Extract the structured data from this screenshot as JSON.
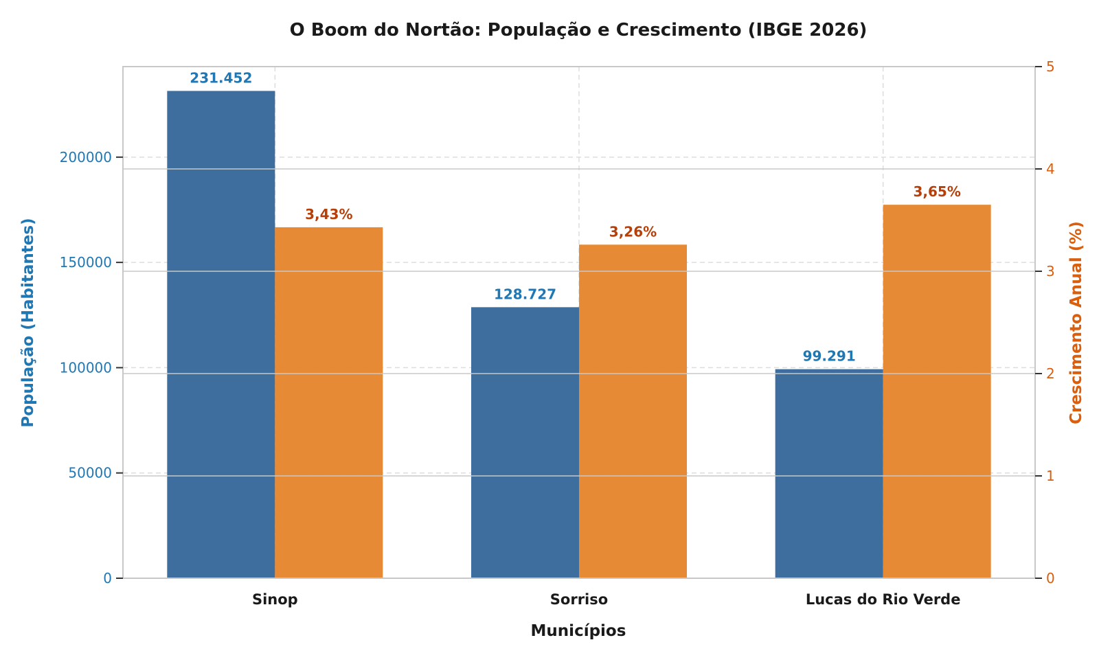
{
  "chart_data": {
    "type": "bar",
    "title": "O Boom do Nortão: População e Crescimento (IBGE 2026)",
    "xlabel": "Municípios",
    "categories": [
      "Sinop",
      "Sorriso",
      "Lucas do Rio Verde"
    ],
    "left_axis": {
      "label": "População (Habitantes)",
      "range": [
        0,
        243000
      ],
      "ticks": [
        0,
        50000,
        100000,
        150000,
        200000
      ],
      "color": "#1f77b4"
    },
    "right_axis": {
      "label": "Crescimento Anual (%)",
      "range": [
        0,
        5
      ],
      "ticks": [
        0,
        1,
        2,
        3,
        4,
        5
      ],
      "color": "#d95f0e"
    },
    "series": [
      {
        "axis": "left",
        "color": "#336699",
        "label_color": "#1f77b4",
        "values": [
          231452,
          128727,
          99291
        ],
        "labels": [
          "231.452",
          "128.727",
          "99.291"
        ]
      },
      {
        "axis": "right",
        "color": "#e6842a",
        "label_color": "#b5400a",
        "values": [
          3.43,
          3.26,
          3.65
        ],
        "labels": [
          "3,43%",
          "3,26%",
          "3,65%"
        ]
      }
    ],
    "grid": true,
    "legend": "none"
  }
}
